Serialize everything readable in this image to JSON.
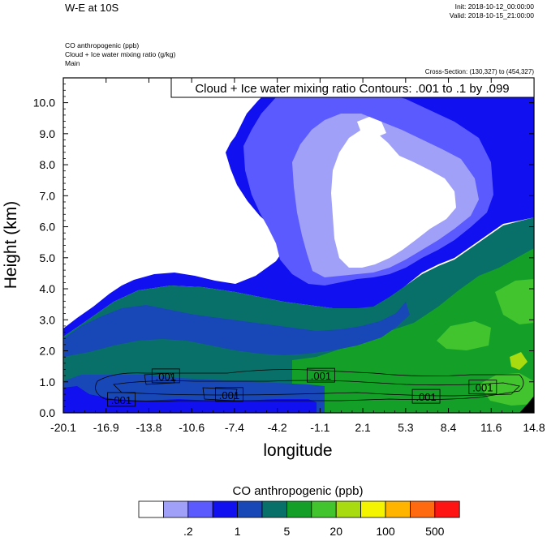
{
  "header": {
    "title": "W-E at 10S",
    "init": "Init: 2018-10-12_00:00:00",
    "valid": "Valid: 2018-10-15_21:00:00",
    "field1": "CO anthropogenic   (ppb)",
    "field2": "Cloud + Ice water mixing ratio   (g/kg)",
    "field3": "Main",
    "cross_section": "Cross-Section: (130,327) to (454,327)"
  },
  "chart_data": {
    "type": "heatmap",
    "title": "",
    "contour_label": "Cloud + Ice water mixing ratio Contours: .001 to .1 by .099",
    "xlabel": "longitude",
    "ylabel": "Height (km)",
    "xlim": [
      -20.1,
      14.8
    ],
    "ylim": [
      0.0,
      10.8
    ],
    "x_ticks": [
      "-20.1",
      "-16.9",
      "-13.8",
      "-10.6",
      "-7.4",
      "-4.2",
      "-1.1",
      "2.1",
      "5.3",
      "8.4",
      "11.6",
      "14.8"
    ],
    "y_ticks": [
      "0.0",
      "1.0",
      "2.0",
      "3.0",
      "4.0",
      "5.0",
      "6.0",
      "7.0",
      "8.0",
      "9.0",
      "10.0"
    ],
    "y_tick_values": [
      0,
      1,
      2,
      3,
      4,
      5,
      6,
      7,
      8,
      9,
      10
    ],
    "contour_labels": [
      {
        "text": ".001",
        "x": -15.8,
        "y": 0.42
      },
      {
        "text": ".001",
        "x": -12.5,
        "y": 1.18
      },
      {
        "text": ".001",
        "x": -7.8,
        "y": 0.58
      },
      {
        "text": ".001",
        "x": -1.0,
        "y": 1.2
      },
      {
        "text": ".001",
        "x": 6.8,
        "y": 0.52
      },
      {
        "text": ".001",
        "x": 11.0,
        "y": 0.82
      }
    ],
    "colorbar": {
      "title": "CO anthropogenic  (ppb)",
      "colors": [
        "#ffffff",
        "#a0a0f8",
        "#5a5aff",
        "#1010f0",
        "#1848b8",
        "#087068",
        "#14a028",
        "#42c42e",
        "#a8dc10",
        "#f4f400",
        "#ffb400",
        "#ff6a10",
        "#ff1414"
      ],
      "labels": [
        ".2",
        "1",
        "5",
        "20",
        "100",
        "500"
      ]
    }
  }
}
